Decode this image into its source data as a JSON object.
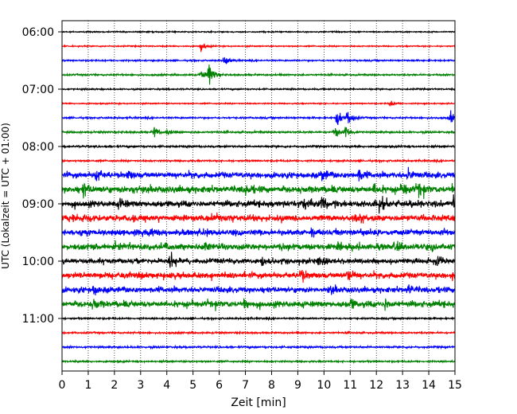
{
  "chart_data": {
    "type": "line",
    "xlabel": "Zeit  [min]",
    "ylabel": "UTC (Lokalzeit = UTC + 01:00)",
    "xlim": [
      0,
      15
    ],
    "x_ticks": [
      "0",
      "1",
      "2",
      "3",
      "4",
      "5",
      "6",
      "7",
      "8",
      "9",
      "10",
      "11",
      "12",
      "13",
      "14",
      "15"
    ],
    "y_ticks": [
      "06:00",
      "07:00",
      "08:00",
      "09:00",
      "10:00",
      "11:00"
    ],
    "grid": "vertical dotted",
    "trace_colors": [
      "#000000",
      "#ff0000",
      "#0000ff",
      "#008000"
    ],
    "traces": [
      {
        "start": "06:00",
        "noise": 0.5,
        "events": []
      },
      {
        "start": "06:15",
        "noise": 0.5,
        "events": [
          [
            5.3,
            5
          ]
        ]
      },
      {
        "start": "06:30",
        "noise": 0.6,
        "events": [
          [
            6.2,
            6
          ]
        ]
      },
      {
        "start": "06:45",
        "noise": 0.7,
        "events": [
          [
            5.6,
            12
          ],
          [
            5.3,
            5
          ]
        ]
      },
      {
        "start": "07:00",
        "noise": 0.6,
        "events": []
      },
      {
        "start": "07:15",
        "noise": 0.5,
        "events": [
          [
            12.5,
            3
          ]
        ]
      },
      {
        "start": "07:30",
        "noise": 0.7,
        "events": [
          [
            10.5,
            9
          ],
          [
            10.9,
            9
          ],
          [
            14.8,
            6
          ]
        ]
      },
      {
        "start": "07:45",
        "noise": 0.8,
        "events": [
          [
            3.5,
            5
          ],
          [
            4.0,
            3
          ],
          [
            10.8,
            7
          ],
          [
            10.4,
            5
          ]
        ]
      },
      {
        "start": "08:00",
        "noise": 0.8,
        "events": []
      },
      {
        "start": "08:15",
        "noise": 0.7,
        "events": []
      },
      {
        "start": "08:30",
        "noise": 2.2,
        "events": [
          [
            1.3,
            7
          ],
          [
            2.5,
            4
          ],
          [
            9.9,
            6
          ],
          [
            11.3,
            6
          ],
          [
            13.2,
            5
          ]
        ]
      },
      {
        "start": "08:45",
        "noise": 2.6,
        "events": [
          [
            0.8,
            6
          ],
          [
            2.7,
            5
          ],
          [
            7.0,
            5
          ],
          [
            11.9,
            5
          ],
          [
            13.0,
            6
          ],
          [
            13.6,
            5
          ]
        ]
      },
      {
        "start": "09:00",
        "noise": 2.4,
        "events": [
          [
            2.2,
            5
          ],
          [
            9.2,
            7
          ],
          [
            9.9,
            8
          ],
          [
            12.1,
            6
          ],
          [
            14.9,
            6
          ]
        ]
      },
      {
        "start": "09:15",
        "noise": 2.4,
        "events": [
          [
            0.4,
            4
          ],
          [
            11.1,
            4
          ]
        ]
      },
      {
        "start": "09:30",
        "noise": 2.2,
        "events": [
          [
            3.3,
            4
          ],
          [
            9.5,
            4
          ],
          [
            11.4,
            5
          ]
        ]
      },
      {
        "start": "09:45",
        "noise": 2.4,
        "events": [
          [
            5.4,
            4
          ],
          [
            12.7,
            5
          ]
        ]
      },
      {
        "start": "10:00",
        "noise": 2.0,
        "events": [
          [
            4.1,
            7
          ],
          [
            7.6,
            5
          ],
          [
            9.8,
            5
          ],
          [
            14.3,
            5
          ]
        ]
      },
      {
        "start": "10:15",
        "noise": 2.2,
        "events": [
          [
            9.1,
            6
          ],
          [
            10.9,
            6
          ],
          [
            14.9,
            5
          ],
          [
            2.2,
            4
          ]
        ]
      },
      {
        "start": "10:30",
        "noise": 2.2,
        "events": [
          [
            1.2,
            4
          ],
          [
            10.2,
            4
          ],
          [
            13.2,
            5
          ]
        ]
      },
      {
        "start": "10:45",
        "noise": 2.4,
        "events": [
          [
            1.2,
            5
          ],
          [
            7.0,
            4
          ],
          [
            11.0,
            4
          ],
          [
            12.3,
            5
          ]
        ]
      },
      {
        "start": "11:00",
        "noise": 0.7,
        "events": []
      },
      {
        "start": "11:15",
        "noise": 0.7,
        "events": []
      },
      {
        "start": "11:30",
        "noise": 0.8,
        "events": []
      },
      {
        "start": "11:45",
        "noise": 0.7,
        "events": []
      }
    ]
  }
}
